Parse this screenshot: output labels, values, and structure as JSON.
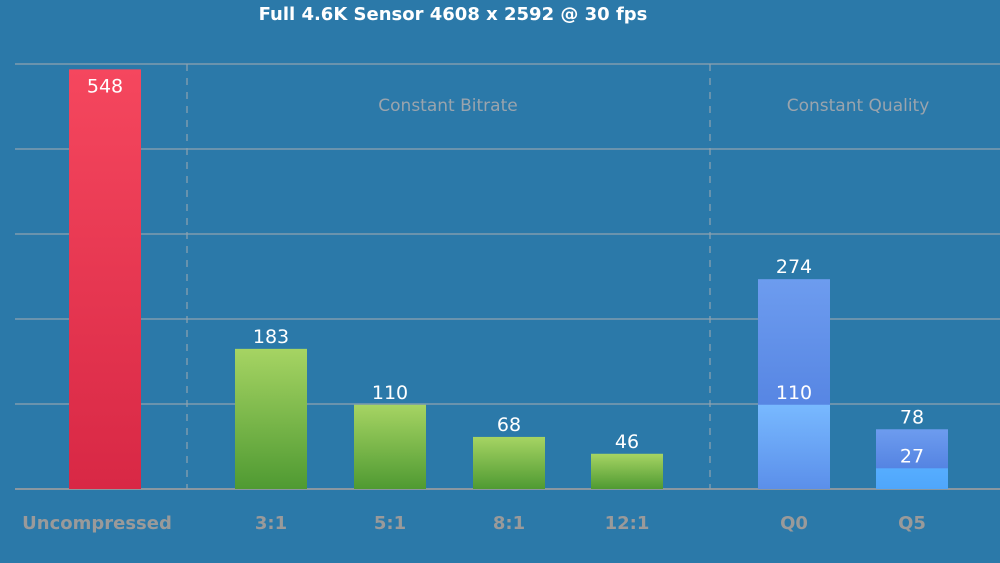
{
  "chart_data": {
    "type": "bar",
    "title": "Full 4.6K Sensor 4608 x 2592 @ 30 fps",
    "categories": [
      "Uncompressed",
      "3:1",
      "5:1",
      "8:1",
      "12:1",
      "Q0",
      "Q5"
    ],
    "groups": [
      {
        "label": "",
        "categories": [
          "Uncompressed"
        ]
      },
      {
        "label": "Constant Bitrate",
        "categories": [
          "3:1",
          "5:1",
          "8:1",
          "12:1"
        ]
      },
      {
        "label": "Constant Quality",
        "categories": [
          "Q0",
          "Q5"
        ]
      }
    ],
    "series": [
      {
        "values": [
          548,
          183,
          110,
          68,
          46,
          274,
          78
        ]
      },
      {
        "values": [
          null,
          null,
          null,
          null,
          null,
          110,
          27
        ]
      }
    ],
    "stacked_note_values": {
      "Q0": [
        110,
        274
      ],
      "Q5": [
        27,
        78
      ]
    },
    "ylim": [
      0,
      555
    ],
    "grid": true,
    "y_tick_labels_shown": false,
    "colors": {
      "background": "#2b79a9",
      "uncompressed": "#f04058",
      "constant_bitrate": "#8cc44c",
      "constant_quality_total": "#5f8fe8",
      "constant_quality_lower": "#6fb2ff",
      "group_label": "#9aa4ad",
      "category_label": "#9a9a9a"
    }
  }
}
